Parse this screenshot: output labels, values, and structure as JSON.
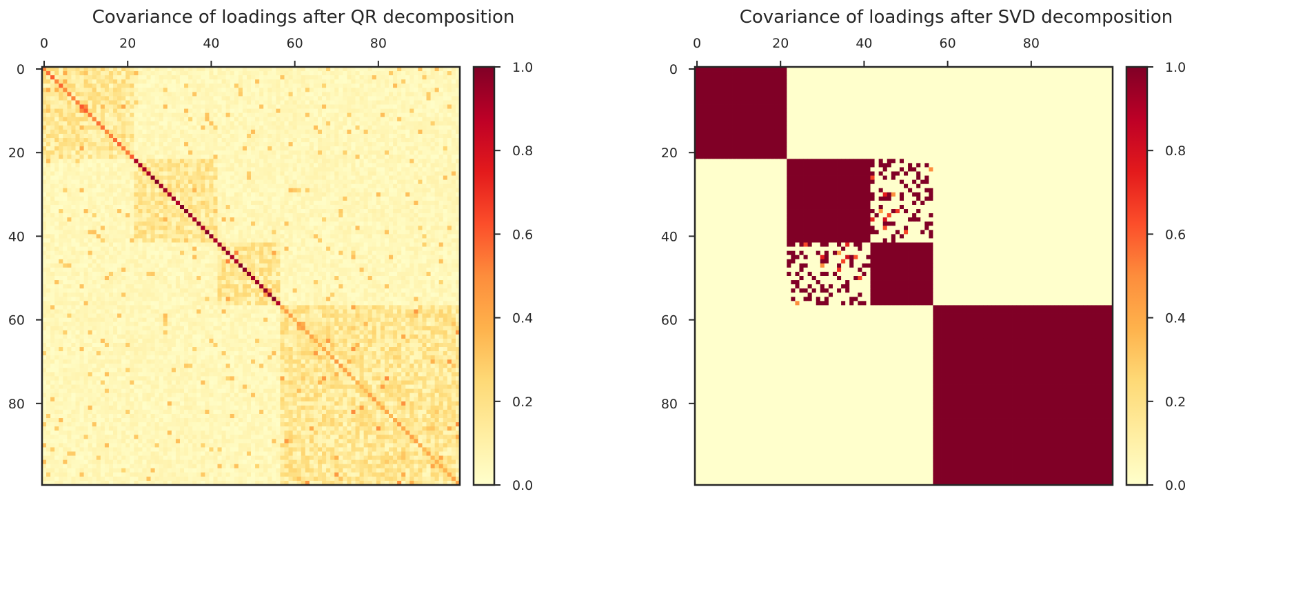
{
  "figure": {
    "colormap": "YlOrRd",
    "cmap_low": "#ffffcc",
    "cmap_high": "#800026"
  },
  "chart_data": [
    {
      "type": "heatmap",
      "title": "Covariance of loadings after QR decomposition",
      "xlabel": "",
      "ylabel": "",
      "matrix_size": 100,
      "xlim": [
        0,
        99
      ],
      "ylim": [
        0,
        99
      ],
      "x_ticks": [
        0,
        20,
        40,
        60,
        80
      ],
      "y_ticks": [
        0,
        20,
        40,
        60,
        80
      ],
      "colorbar": {
        "range": [
          0.0,
          1.0
        ],
        "ticks": [
          "0.0",
          "0.2",
          "0.4",
          "0.6",
          "0.8",
          "1.0"
        ]
      },
      "blocks": [
        [
          0,
          21
        ],
        [
          22,
          41
        ],
        [
          42,
          56
        ],
        [
          57,
          99
        ]
      ],
      "diagonal": [
        {
          "from": 0,
          "to": 21,
          "value": 0.55
        },
        {
          "from": 22,
          "to": 56,
          "value": 0.95
        },
        {
          "from": 57,
          "to": 99,
          "value": 0.4
        }
      ],
      "within_block_typical": 0.18,
      "between_block_typical": 0.06,
      "grid": false
    },
    {
      "type": "heatmap",
      "title": "Covariance of loadings after SVD decomposition",
      "xlabel": "",
      "ylabel": "",
      "matrix_size": 100,
      "xlim": [
        0,
        99
      ],
      "ylim": [
        0,
        99
      ],
      "x_ticks": [
        0,
        20,
        40,
        60,
        80
      ],
      "y_ticks": [
        0,
        20,
        40,
        60,
        80
      ],
      "colorbar": {
        "range": [
          0.0,
          1.0
        ],
        "ticks": [
          "0.0",
          "0.2",
          "0.4",
          "0.6",
          "0.8",
          "1.0"
        ]
      },
      "blocks": [
        {
          "rows": [
            0,
            21
          ],
          "cols": [
            0,
            21
          ],
          "value": 1.0
        },
        {
          "rows": [
            22,
            41
          ],
          "cols": [
            22,
            41
          ],
          "value": 1.0
        },
        {
          "rows": [
            42,
            56
          ],
          "cols": [
            42,
            56
          ],
          "value": 1.0
        },
        {
          "rows": [
            57,
            99
          ],
          "cols": [
            57,
            99
          ],
          "value": 1.0
        }
      ],
      "sparse_offdiag_region": {
        "rows": [
          22,
          41
        ],
        "cols": [
          42,
          56
        ],
        "symmetric": true,
        "typical_value": 1.0
      },
      "background_value": 0.0,
      "grid": false
    }
  ]
}
